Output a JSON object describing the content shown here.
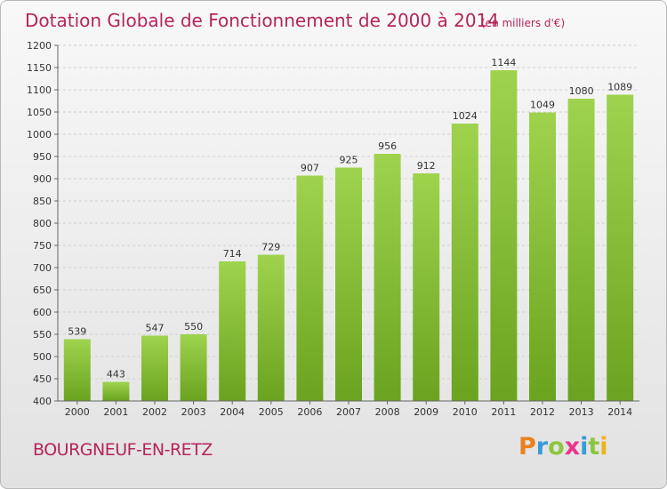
{
  "title": "Dotation Globale de Fonctionnement de 2000 à 2014",
  "subtitle": "(en milliers d'€)",
  "commune": "BOURGNEUF-EN-RETZ",
  "logo": {
    "letters": [
      "P",
      "r",
      "o",
      "x",
      "i",
      "t",
      "i"
    ],
    "colors": [
      "#e8821e",
      "#3a9ad9",
      "#8cc63f",
      "#e8358c",
      "#3a9ad9",
      "#8cc63f",
      "#f0b21e"
    ]
  },
  "colors": {
    "bar": "#8cc63f",
    "bar_dark": "#6aa31f",
    "title": "#b5245c",
    "axis": "#666666"
  },
  "chart_data": {
    "type": "bar",
    "title": "Dotation Globale de Fonctionnement de 2000 à 2014",
    "subtitle": "(en milliers d'€)",
    "categories": [
      "2000",
      "2001",
      "2002",
      "2003",
      "2004",
      "2005",
      "2006",
      "2007",
      "2008",
      "2009",
      "2010",
      "2011",
      "2012",
      "2013",
      "2014"
    ],
    "values": [
      539,
      443,
      547,
      550,
      714,
      729,
      907,
      925,
      956,
      912,
      1024,
      1144,
      1049,
      1080,
      1089
    ],
    "ylim": [
      400,
      1200
    ],
    "yticks": [
      400,
      450,
      500,
      550,
      600,
      650,
      700,
      750,
      800,
      850,
      900,
      950,
      1000,
      1050,
      1100,
      1150,
      1200
    ],
    "grid": true,
    "legend": "none"
  }
}
